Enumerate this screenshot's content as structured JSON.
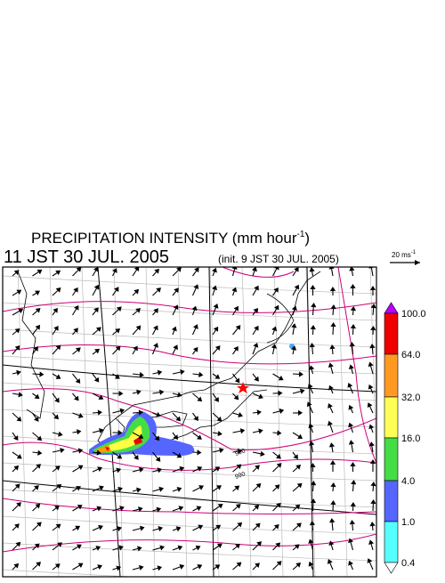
{
  "title": {
    "text": "PRECIPITATION INTENSITY (mm hour",
    "sup": "-1",
    "close": ")"
  },
  "valid_time": "11 JST 30 JUL. 2005",
  "init_time": "(init. 9 JST 30 JUL. 2005)",
  "vector_scale": {
    "label": "20 ms",
    "sup": "-1"
  },
  "contour_labels": [
    "990",
    "990"
  ],
  "colorbar": {
    "labels": [
      "100.0",
      "64.0",
      "32.0",
      "16.0",
      "4.0",
      "1.0",
      "0.4"
    ]
  }
}
